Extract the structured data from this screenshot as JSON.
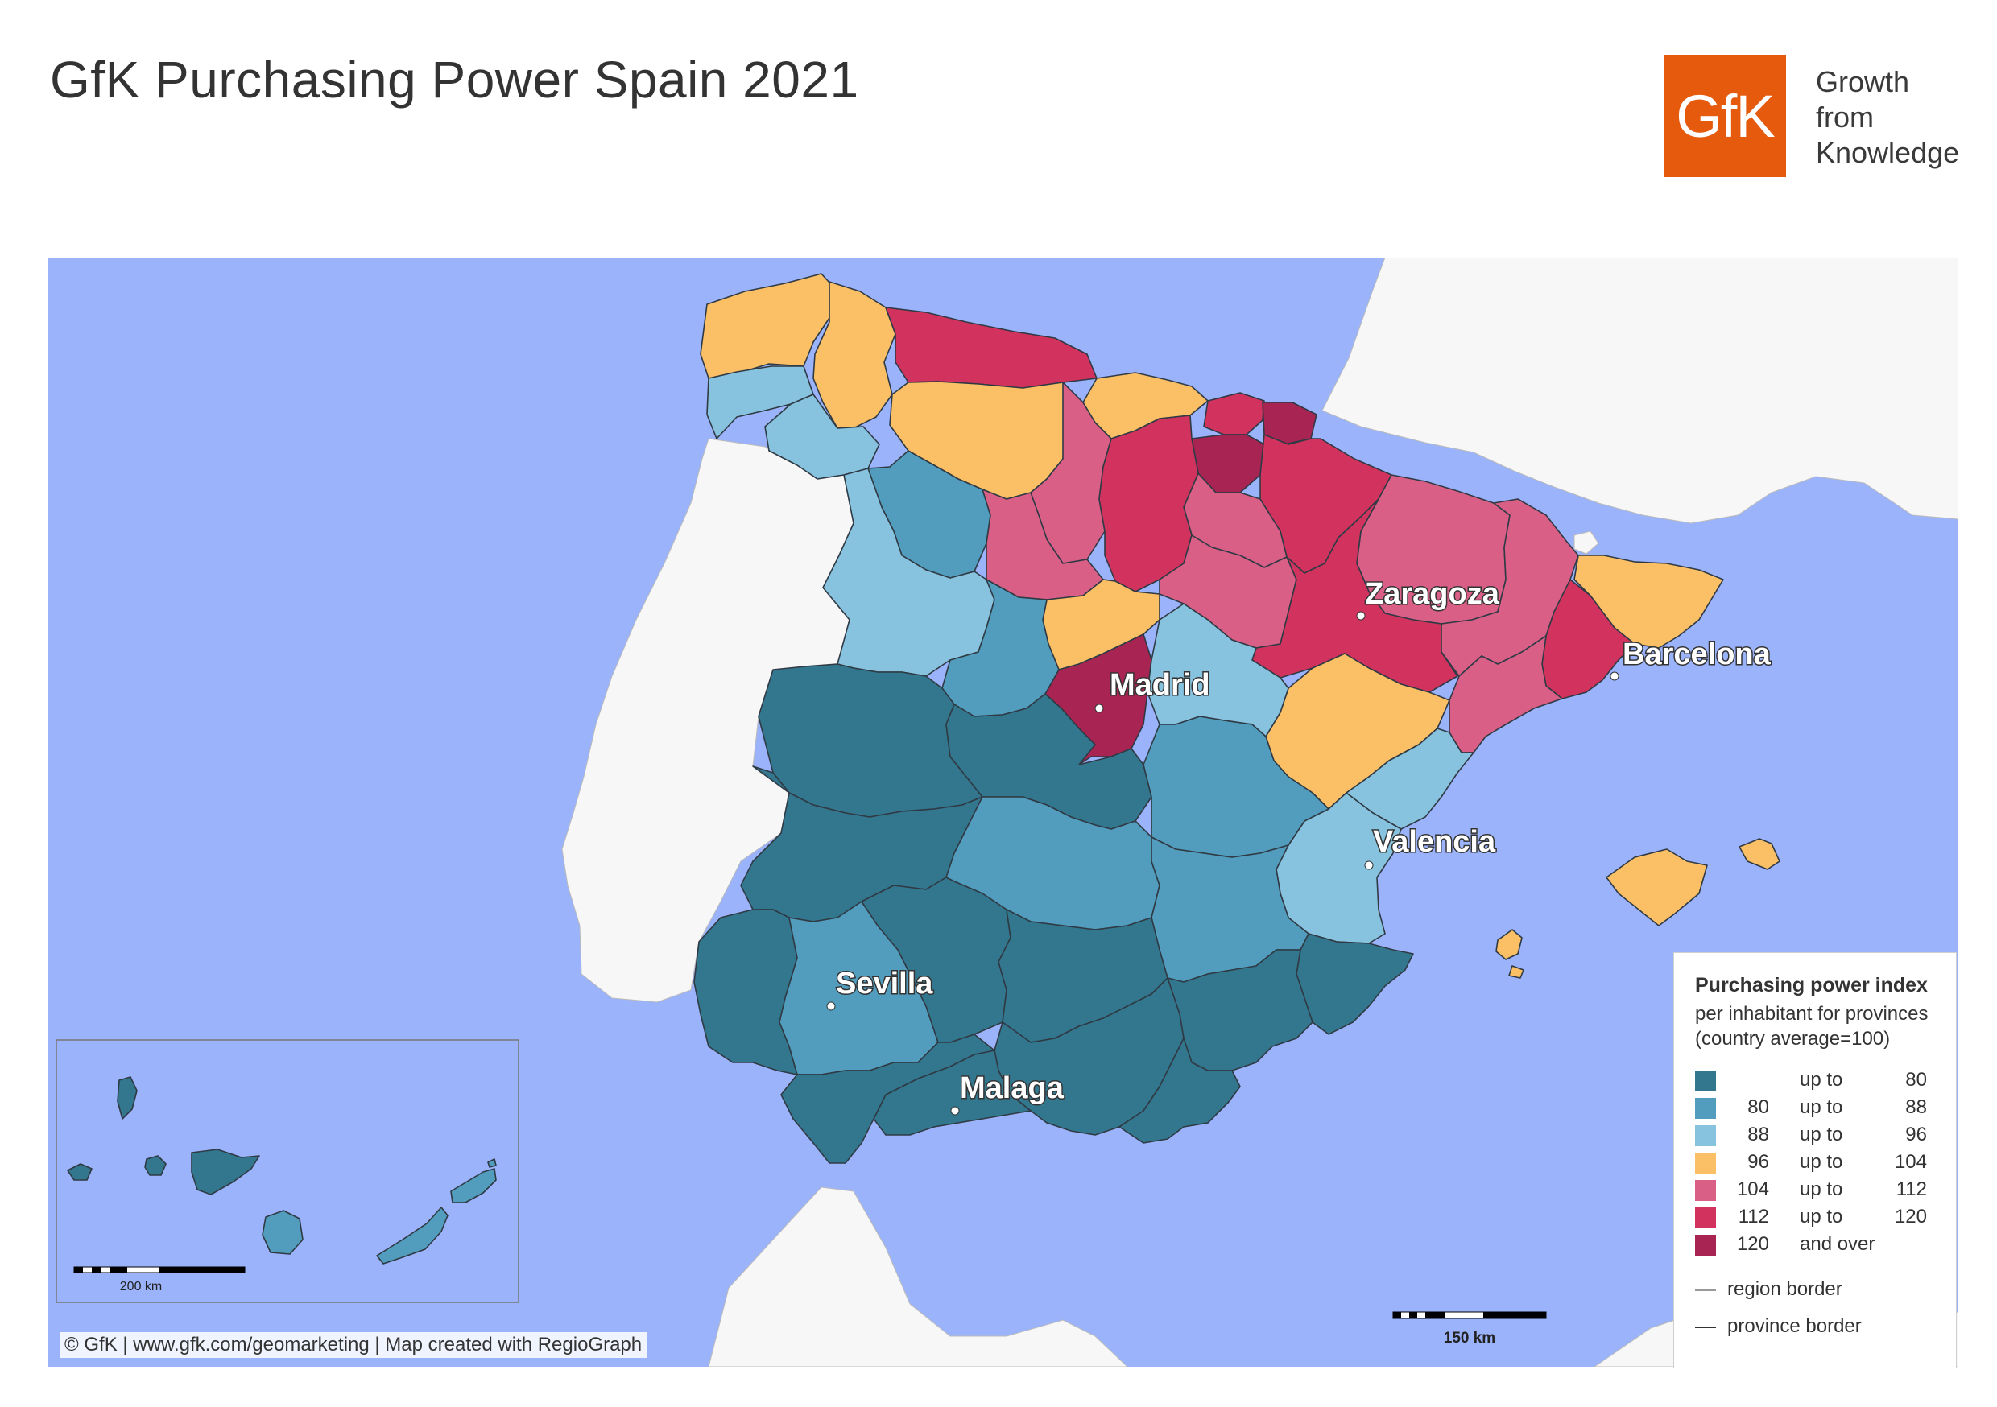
{
  "title": "GfK Purchasing Power Spain 2021",
  "logo": {
    "text": "GfK",
    "color": "#e55a0c"
  },
  "tagline": [
    "Growth",
    "from",
    "Knowledge"
  ],
  "cities": [
    "Madrid",
    "Zaragoza",
    "Barcelona",
    "Valencia",
    "Sevilla",
    "Malaga"
  ],
  "inset_scale_label": "200 km",
  "main_scale_label": "150 km",
  "copyright": "© GfK | www.gfk.com/geomarketing | Map created with RegioGraph",
  "legend": {
    "title": "Purchasing power index",
    "subtitle": [
      "per inhabitant for provinces",
      "(country average=100)"
    ],
    "classes": [
      {
        "low": "",
        "conn": "up to",
        "high": "80",
        "color": "#33778f"
      },
      {
        "low": "80",
        "conn": "up to",
        "high": "88",
        "color": "#529dbd"
      },
      {
        "low": "88",
        "conn": "up to",
        "high": "96",
        "color": "#87c2de"
      },
      {
        "low": "96",
        "conn": "up to",
        "high": "104",
        "color": "#fbbf66"
      },
      {
        "low": "104",
        "conn": "up to",
        "high": "112",
        "color": "#d95f86"
      },
      {
        "low": "112",
        "conn": "up to",
        "high": "120",
        "color": "#d1335e"
      },
      {
        "low": "120",
        "conn": "and over",
        "high": "",
        "color": "#a82452"
      }
    ],
    "borders": [
      "region border",
      "province border"
    ]
  },
  "colors": {
    "sea": "#9ab3fb",
    "foreign_land": "#f7f7f7"
  }
}
